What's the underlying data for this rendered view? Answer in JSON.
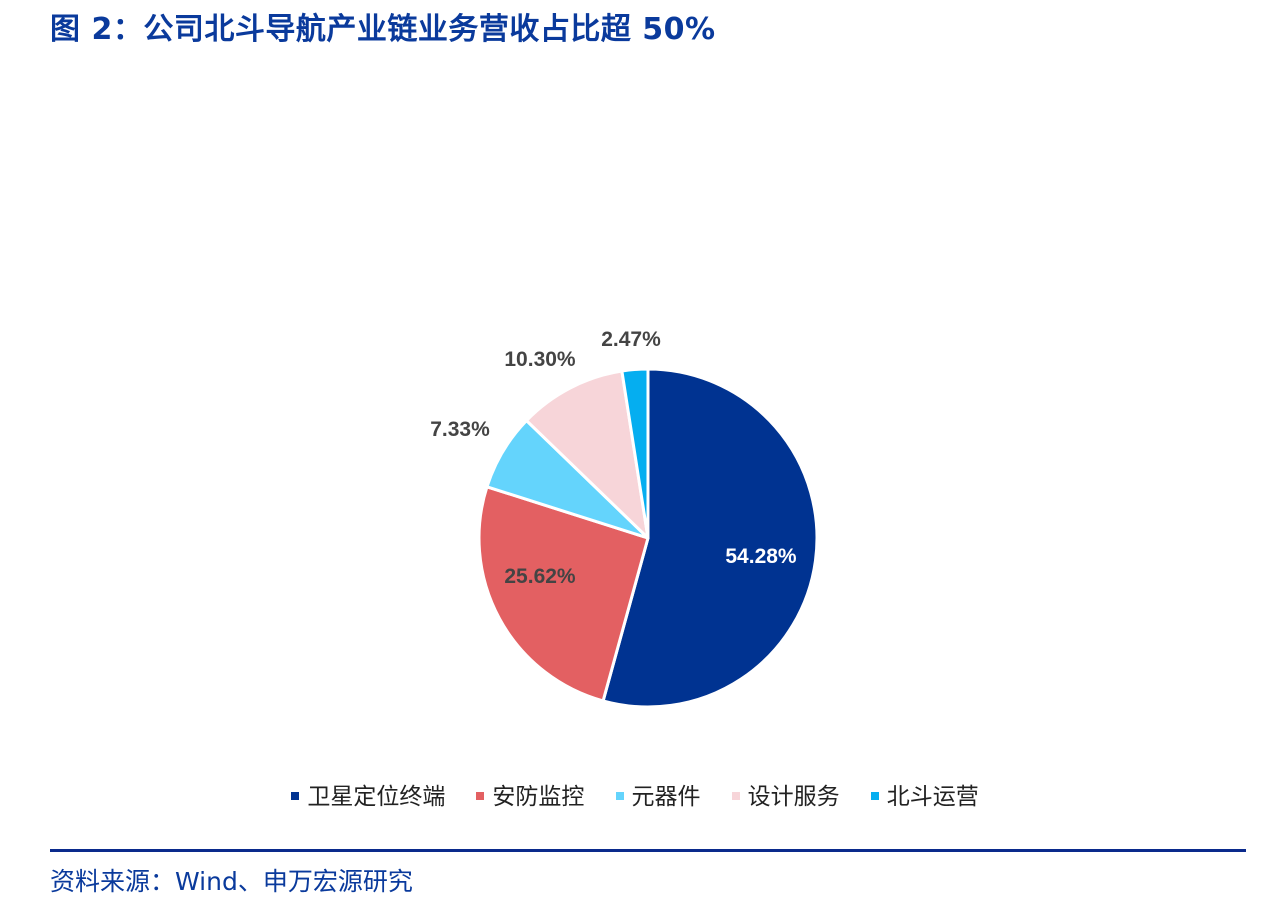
{
  "title": "图 2：公司北斗导航产业链业务营收占比超 50%",
  "source": "资料来源：Wind、申万宏源研究",
  "chart_data": {
    "type": "pie",
    "title": "",
    "start_angle_deg": 0,
    "direction": "clockwise",
    "legend_position": "bottom",
    "slices": [
      {
        "name": "卫星定位终端",
        "value": 54.28,
        "label": "54.28%",
        "color": "#003391",
        "label_color": "#ffffff"
      },
      {
        "name": "安防监控",
        "value": 25.62,
        "label": "25.62%",
        "color": "#e36062",
        "label_color": "#444444"
      },
      {
        "name": "元器件",
        "value": 7.33,
        "label": "7.33%",
        "color": "#64d4fc",
        "label_color": "#444444"
      },
      {
        "name": "设计服务",
        "value": 10.3,
        "label": "10.30%",
        "color": "#f7d5d9",
        "label_color": "#444444"
      },
      {
        "name": "北斗运营",
        "value": 2.47,
        "label": "2.47%",
        "color": "#05aef0",
        "label_color": "#444444"
      }
    ]
  }
}
